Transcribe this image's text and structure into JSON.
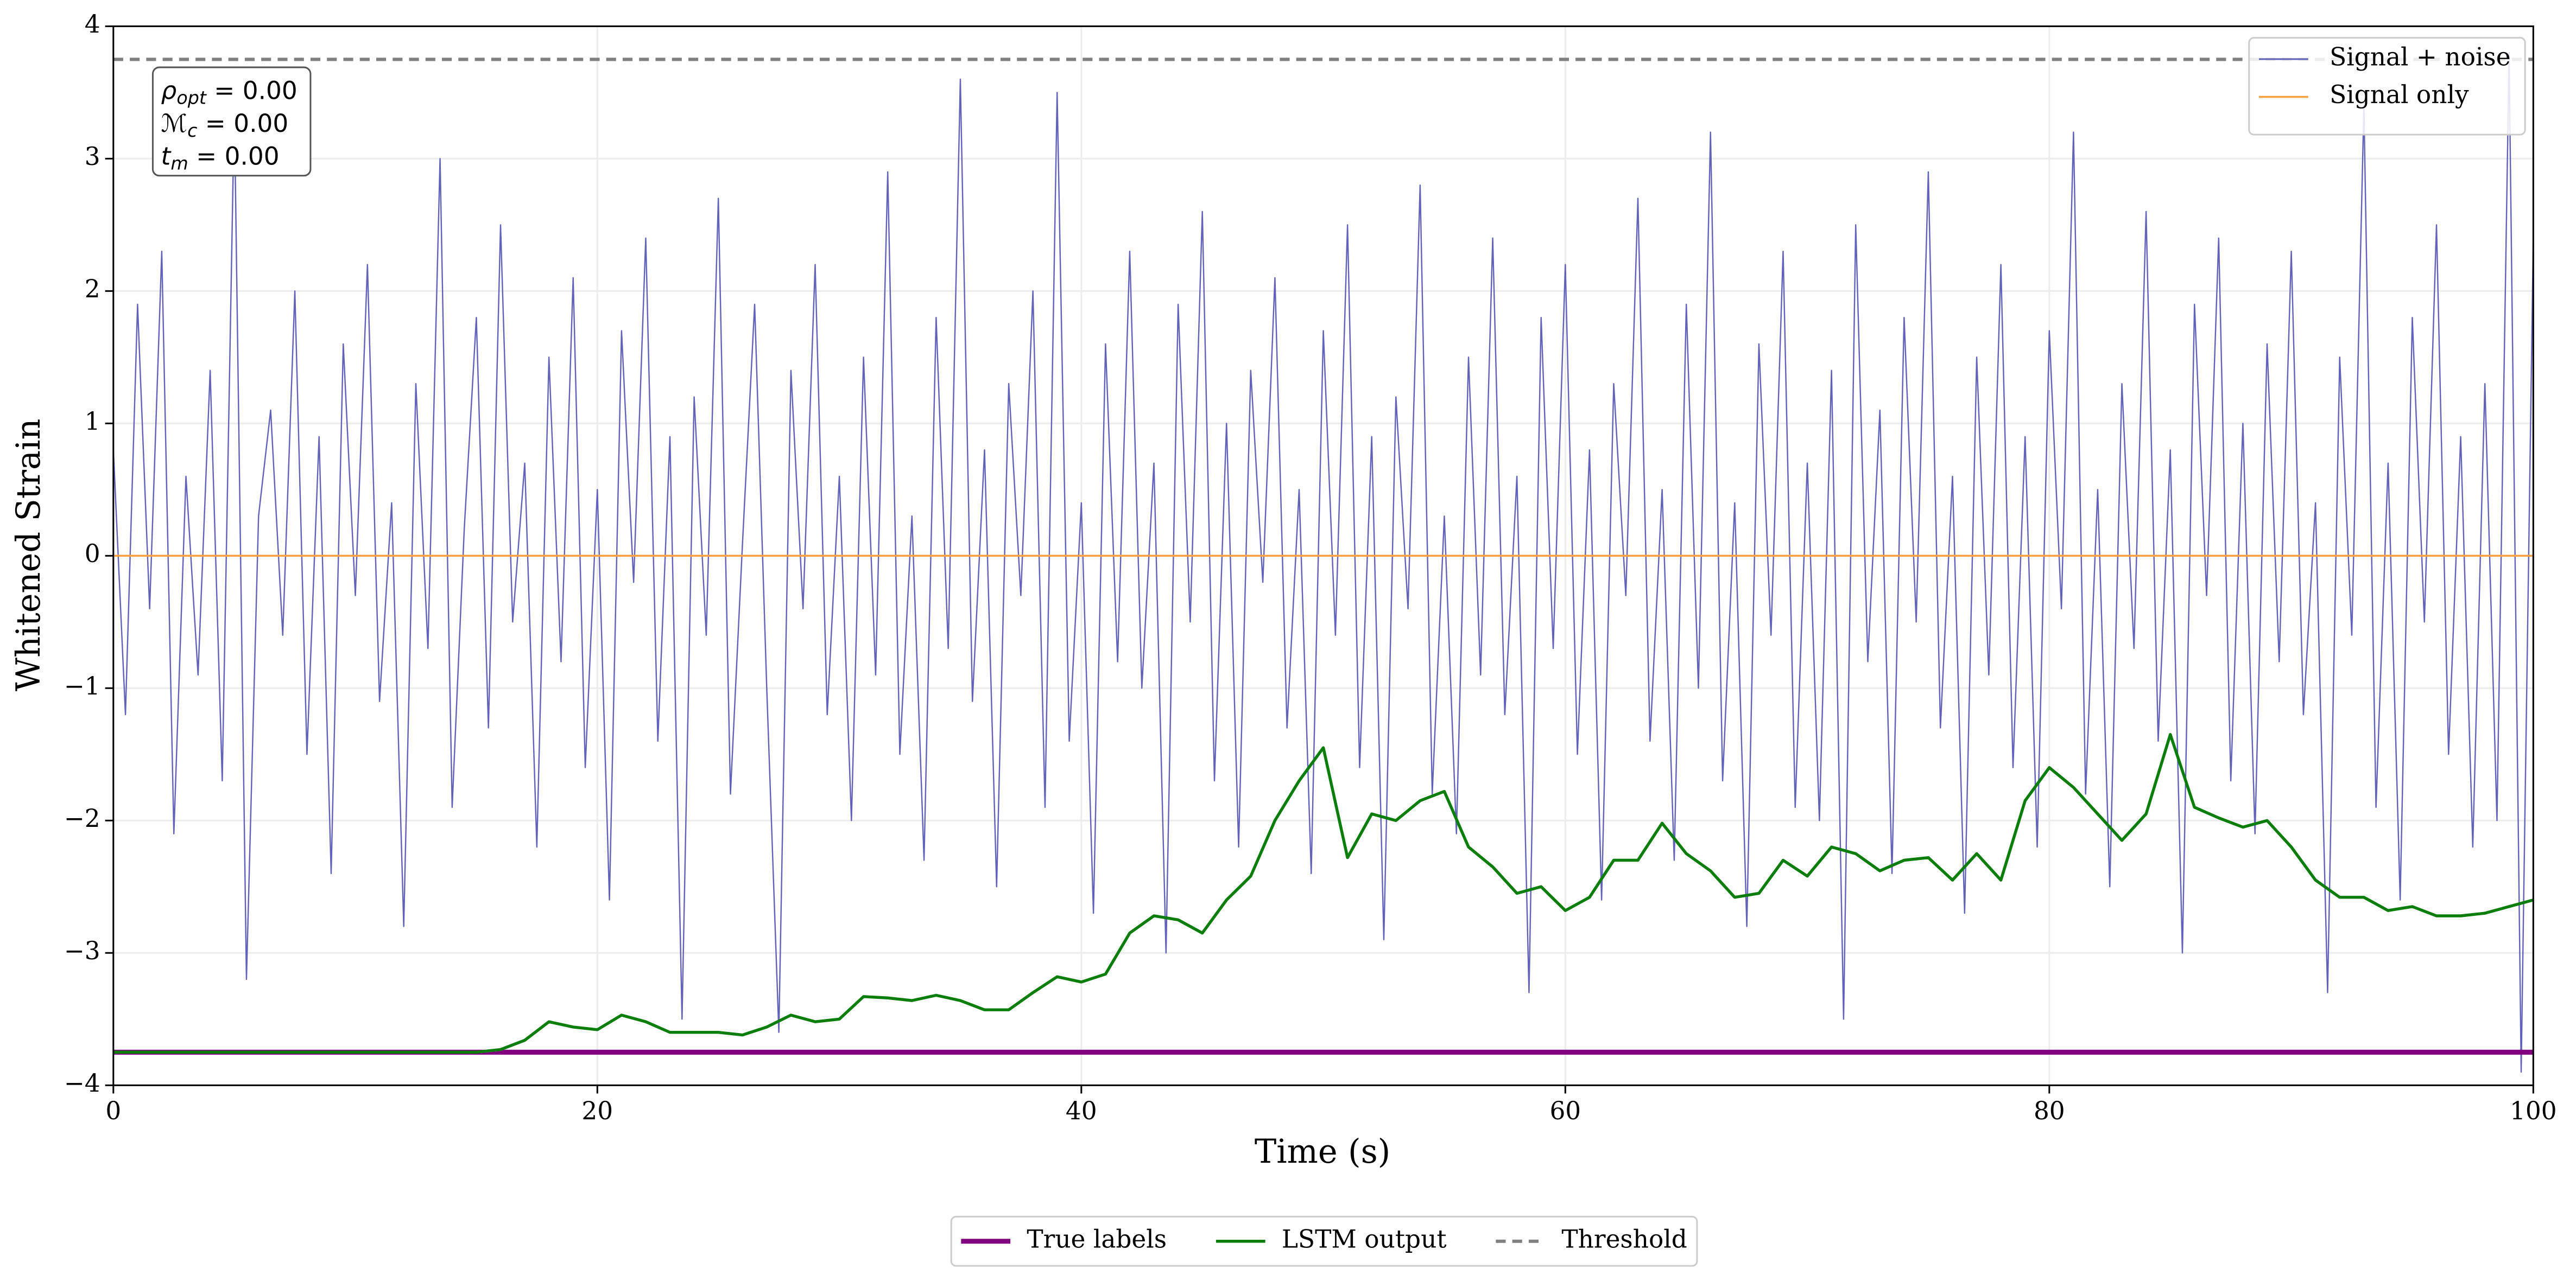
{
  "chart_data": {
    "type": "line",
    "xlabel": "Time (s)",
    "ylabel": "Whitened Strain",
    "xlim": [
      0,
      100
    ],
    "ylim": [
      -4,
      4
    ],
    "xticks": [
      0,
      20,
      40,
      60,
      80,
      100
    ],
    "yticks": [
      {
        "value": -4,
        "label": "−4"
      },
      {
        "value": -3,
        "label": "−3"
      },
      {
        "value": -2,
        "label": "−2"
      },
      {
        "value": -1,
        "label": "−1"
      },
      0,
      1,
      2,
      3,
      4
    ],
    "grid": true,
    "annotations": [
      {
        "symbol": "ρ",
        "subscript": "opt",
        "text": " = 0.00"
      },
      {
        "symbol": "ℳ",
        "subscript": "c",
        "text": " = 0.00"
      },
      {
        "symbol": "t",
        "subscript": "m",
        "text": " = 0.00"
      }
    ],
    "series": [
      {
        "name": "Signal + noise",
        "color": "#6262b8",
        "width": 0.8,
        "legend": "upper right",
        "x": [
          0,
          0.5,
          1,
          1.5,
          2,
          2.5,
          3,
          3.5,
          4,
          4.5,
          5,
          5.5,
          6,
          6.5,
          7,
          7.5,
          8,
          8.5,
          9,
          9.5,
          10,
          10.5,
          11,
          11.5,
          12,
          12.5,
          13,
          13.5,
          14,
          14.5,
          15,
          15.5,
          16,
          16.5,
          17,
          17.5,
          18,
          18.5,
          19,
          19.5,
          20,
          20.5,
          21,
          21.5,
          22,
          22.5,
          23,
          23.5,
          24,
          24.5,
          25,
          25.5,
          26,
          26.5,
          27,
          27.5,
          28,
          28.5,
          29,
          29.5,
          30,
          30.5,
          31,
          31.5,
          32,
          32.5,
          33,
          33.5,
          34,
          34.5,
          35,
          35.5,
          36,
          36.5,
          37,
          37.5,
          38,
          38.5,
          39,
          39.5,
          40,
          40.5,
          41,
          41.5,
          42,
          42.5,
          43,
          43.5,
          44,
          44.5,
          45,
          45.5,
          46,
          46.5,
          47,
          47.5,
          48,
          48.5,
          49,
          49.5,
          50,
          50.5,
          51,
          51.5,
          52,
          52.5,
          53,
          53.5,
          54,
          54.5,
          55,
          55.5,
          56,
          56.5,
          57,
          57.5,
          58,
          58.5,
          59,
          59.5,
          60,
          60.5,
          61,
          61.5,
          62,
          62.5,
          63,
          63.5,
          64,
          64.5,
          65,
          65.5,
          66,
          66.5,
          67,
          67.5,
          68,
          68.5,
          69,
          69.5,
          70,
          70.5,
          71,
          71.5,
          72,
          72.5,
          73,
          73.5,
          74,
          74.5,
          75,
          75.5,
          76,
          76.5,
          77,
          77.5,
          78,
          78.5,
          79,
          79.5,
          80,
          80.5,
          81,
          81.5,
          82,
          82.5,
          83,
          83.5,
          84,
          84.5,
          85,
          85.5,
          86,
          86.5,
          87,
          87.5,
          88,
          88.5,
          89,
          89.5,
          90,
          90.5,
          91,
          91.5,
          92,
          92.5,
          93,
          93.5,
          94,
          94.5,
          95,
          95.5,
          96,
          96.5,
          97,
          97.5,
          98,
          98.5,
          99,
          99.5,
          100
        ],
        "values": [
          0.8,
          -1.2,
          1.9,
          -0.4,
          2.3,
          -2.1,
          0.6,
          -0.9,
          1.4,
          -1.7,
          3.4,
          -3.2,
          0.3,
          1.1,
          -0.6,
          2.0,
          -1.5,
          0.9,
          -2.4,
          1.6,
          -0.3,
          2.2,
          -1.1,
          0.4,
          -2.8,
          1.3,
          -0.7,
          3.0,
          -1.9,
          0.2,
          1.8,
          -1.3,
          2.5,
          -0.5,
          0.7,
          -2.2,
          1.5,
          -0.8,
          2.1,
          -1.6,
          0.5,
          -2.6,
          1.7,
          -0.2,
          2.4,
          -1.4,
          0.9,
          -3.5,
          1.2,
          -0.6,
          2.7,
          -1.8,
          0.1,
          1.9,
          -1.0,
          -3.6,
          1.4,
          -0.4,
          2.2,
          -1.2,
          0.6,
          -2.0,
          1.5,
          -0.9,
          2.9,
          -1.5,
          0.3,
          -2.3,
          1.8,
          -0.7,
          3.6,
          -1.1,
          0.8,
          -2.5,
          1.3,
          -0.3,
          2.0,
          -1.9,
          3.5,
          -1.4,
          0.4,
          -2.7,
          1.6,
          -0.8,
          2.3,
          -1.0,
          0.7,
          -3.0,
          1.9,
          -0.5,
          2.6,
          -1.7,
          1.0,
          -2.2,
          1.4,
          -0.2,
          2.1,
          -1.3,
          0.5,
          -2.4,
          1.7,
          -0.6,
          2.5,
          -1.6,
          0.9,
          -2.9,
          1.2,
          -0.4,
          2.8,
          -1.8,
          0.3,
          -2.1,
          1.5,
          -0.9,
          2.4,
          -1.2,
          0.6,
          -3.3,
          1.8,
          -0.7,
          2.2,
          -1.5,
          0.8,
          -2.6,
          1.3,
          -0.3,
          2.7,
          -1.4,
          0.5,
          -2.3,
          1.9,
          -1.0,
          3.2,
          -1.7,
          0.4,
          -2.8,
          1.6,
          -0.6,
          2.3,
          -1.9,
          0.7,
          -2.0,
          1.4,
          -3.5,
          2.5,
          -0.8,
          1.1,
          -2.4,
          1.8,
          -0.5,
          2.9,
          -1.3,
          0.6,
          -2.7,
          1.5,
          -0.9,
          2.2,
          -1.6,
          0.9,
          -2.2,
          1.7,
          -0.4,
          3.2,
          -1.8,
          0.5,
          -2.5,
          1.3,
          -0.7,
          2.6,
          -1.4,
          0.8,
          -3.0,
          1.9,
          -0.3,
          2.4,
          -1.7,
          1.0,
          -2.1,
          1.6,
          -0.8,
          2.3,
          -1.2,
          0.4,
          -3.3,
          1.5,
          -0.6,
          3.4,
          -1.9,
          0.7,
          -2.6,
          1.8,
          -0.5,
          2.5,
          -1.5,
          0.9,
          -2.2,
          1.3,
          -2.0,
          3.8,
          -3.9,
          2.4
        ]
      },
      {
        "name": "Signal only",
        "color": "#ffa040",
        "width": 1.2,
        "legend": "upper right",
        "x": [
          0,
          100
        ],
        "values": [
          0,
          0
        ]
      },
      {
        "name": "True labels",
        "color": "#800080",
        "width": 3,
        "legend": "bottom",
        "x": [
          0,
          100
        ],
        "values": [
          -3.75,
          -3.75
        ]
      },
      {
        "name": "LSTM output",
        "color": "#0b7d0b",
        "width": 1.8,
        "legend": "bottom",
        "x": [
          0,
          1,
          2,
          3,
          4,
          5,
          6,
          7,
          8,
          9,
          10,
          11,
          12,
          13,
          14,
          15,
          16,
          17,
          18,
          19,
          20,
          21,
          22,
          23,
          24,
          25,
          26,
          27,
          28,
          29,
          30,
          31,
          32,
          33,
          34,
          35,
          36,
          37,
          38,
          39,
          40,
          41,
          42,
          43,
          44,
          45,
          46,
          47,
          48,
          49,
          50,
          51,
          52,
          53,
          54,
          55,
          56,
          57,
          58,
          59,
          60,
          61,
          62,
          63,
          64,
          65,
          66,
          67,
          68,
          69,
          70,
          71,
          72,
          73,
          74,
          75,
          76,
          77,
          78,
          79,
          80,
          81,
          82,
          83,
          84,
          85,
          86,
          87,
          88,
          89,
          90,
          91,
          92,
          93,
          94,
          95,
          96,
          97,
          98,
          99,
          100
        ],
        "values": [
          -3.75,
          -3.75,
          -3.75,
          -3.75,
          -3.75,
          -3.75,
          -3.75,
          -3.75,
          -3.75,
          -3.75,
          -3.75,
          -3.75,
          -3.75,
          -3.75,
          -3.75,
          -3.75,
          -3.73,
          -3.66,
          -3.52,
          -3.56,
          -3.58,
          -3.47,
          -3.52,
          -3.6,
          -3.6,
          -3.6,
          -3.62,
          -3.56,
          -3.47,
          -3.52,
          -3.5,
          -3.33,
          -3.34,
          -3.36,
          -3.32,
          -3.36,
          -3.43,
          -3.43,
          -3.3,
          -3.18,
          -3.22,
          -3.16,
          -2.85,
          -2.72,
          -2.75,
          -2.85,
          -2.6,
          -2.42,
          -2.0,
          -1.7,
          -1.45,
          -2.28,
          -1.95,
          -2.0,
          -1.85,
          -1.78,
          -2.2,
          -2.35,
          -2.55,
          -2.5,
          -2.68,
          -2.58,
          -2.3,
          -2.3,
          -2.02,
          -2.25,
          -2.38,
          -2.58,
          -2.55,
          -2.3,
          -2.42,
          -2.2,
          -2.25,
          -2.38,
          -2.3,
          -2.28,
          -2.45,
          -2.25,
          -2.45,
          -1.85,
          -1.6,
          -1.75,
          -1.95,
          -2.15,
          -1.95,
          -1.35,
          -1.9,
          -1.98,
          -2.05,
          -2.0,
          -2.2,
          -2.45,
          -2.58,
          -2.58,
          -2.68,
          -2.65,
          -2.72,
          -2.72,
          -2.7,
          -2.65,
          -2.6
        ]
      },
      {
        "name": "Threshold",
        "color": "#808080",
        "width": 2,
        "dash": true,
        "legend": "bottom",
        "x": [
          0,
          100
        ],
        "values": [
          3.75,
          3.75
        ]
      }
    ]
  }
}
